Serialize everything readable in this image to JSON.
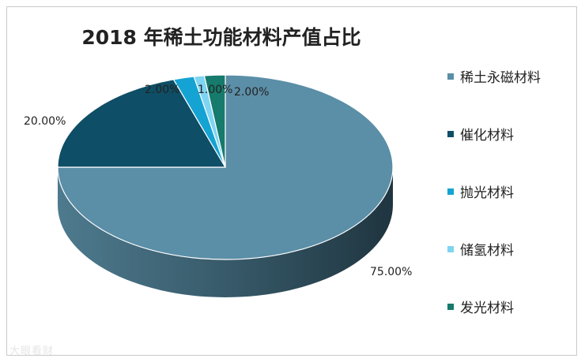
{
  "chart_data": {
    "type": "pie",
    "title": "2018 年稀土功能材料产值占比",
    "categories": [
      "稀土永磁材料",
      "催化材料",
      "抛光材料",
      "储氢材料",
      "发光材料"
    ],
    "values": [
      75,
      20,
      2,
      1,
      2
    ],
    "data_labels": [
      "75.00%",
      "20.00%",
      "2.00%",
      "1.00%",
      "2.00%"
    ],
    "colors": [
      "#5b8ea7",
      "#0e4e66",
      "#15a3d3",
      "#7fd4f1",
      "#167a6c"
    ],
    "legend_position": "right",
    "style": "3d"
  },
  "watermark": "大眼看财"
}
